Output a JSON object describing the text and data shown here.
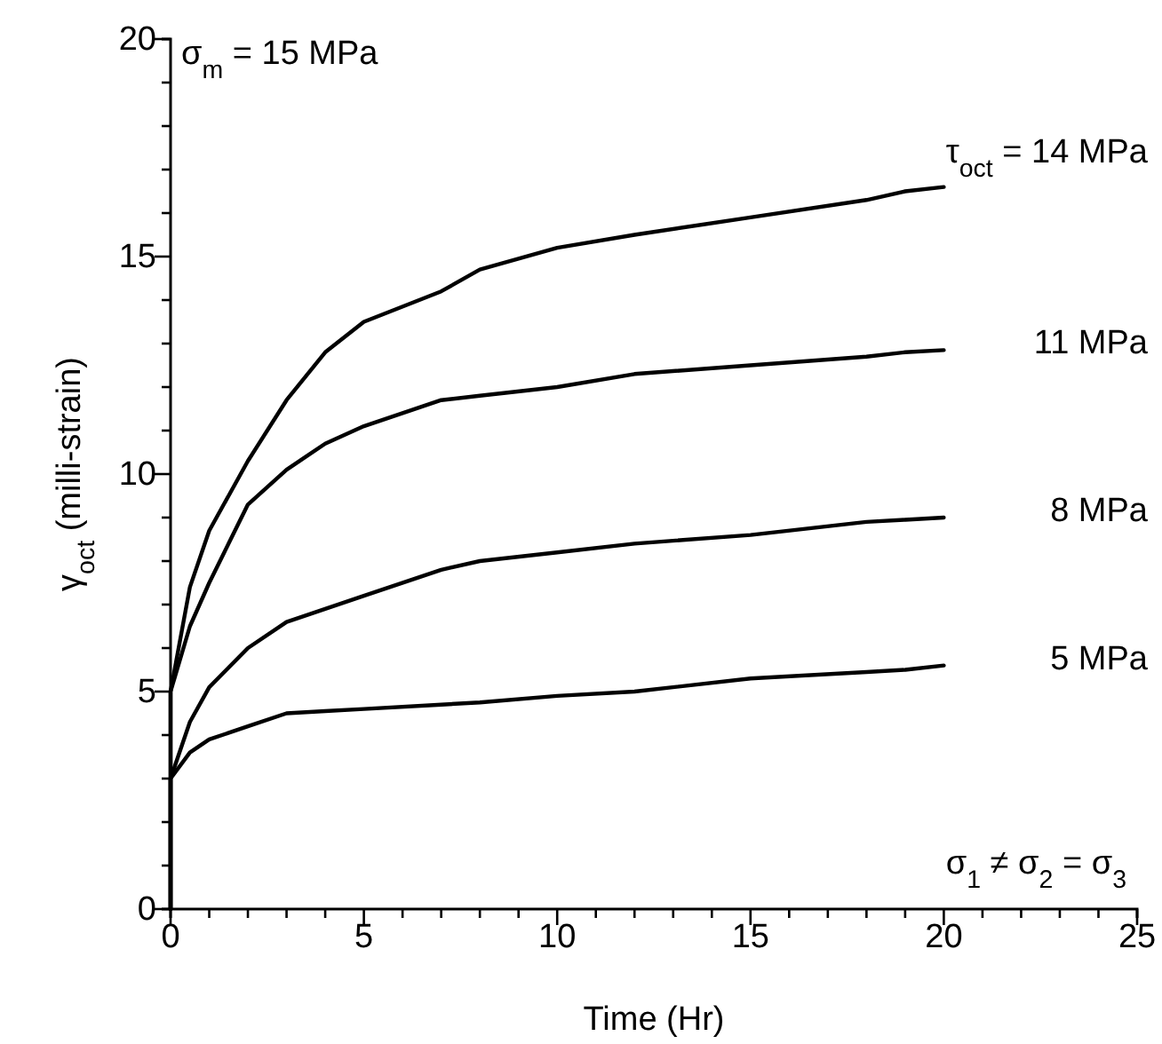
{
  "chart_data": {
    "type": "line",
    "xlabel": "Time (Hr)",
    "ylabel": "γ$_{oct}$  (milli-strain)",
    "xlim": [
      0,
      25
    ],
    "ylim": [
      0,
      20
    ],
    "xticks": [
      0,
      {
        "value": 1,
        "label": null
      },
      {
        "value": 2,
        "label": null
      },
      {
        "value": 3,
        "label": null
      },
      {
        "value": 4,
        "label": null
      },
      5,
      {
        "value": 6,
        "label": null
      },
      {
        "value": 7,
        "label": null
      },
      {
        "value": 8,
        "label": null
      },
      {
        "value": 9,
        "label": null
      },
      10,
      {
        "value": 11,
        "label": null
      },
      {
        "value": 12,
        "label": null
      },
      {
        "value": 13,
        "label": null
      },
      {
        "value": 14,
        "label": null
      },
      15,
      {
        "value": 16,
        "label": null
      },
      {
        "value": 17,
        "label": null
      },
      {
        "value": 18,
        "label": null
      },
      {
        "value": 19,
        "label": null
      },
      20,
      {
        "value": 21,
        "label": null
      },
      {
        "value": 22,
        "label": null
      },
      {
        "value": 23,
        "label": null
      },
      {
        "value": 24,
        "label": null
      },
      25
    ],
    "yticks": [
      0,
      {
        "value": 1,
        "label": null
      },
      {
        "value": 2,
        "label": null
      },
      {
        "value": 3,
        "label": null
      },
      {
        "value": 4,
        "label": null
      },
      5,
      {
        "value": 6,
        "label": null
      },
      {
        "value": 7,
        "label": null
      },
      {
        "value": 8,
        "label": null
      },
      {
        "value": 9,
        "label": null
      },
      10,
      {
        "value": 11,
        "label": null
      },
      {
        "value": 12,
        "label": null
      },
      {
        "value": 13,
        "label": null
      },
      {
        "value": 14,
        "label": null
      },
      15,
      {
        "value": 16,
        "label": null
      },
      {
        "value": 17,
        "label": null
      },
      {
        "value": 18,
        "label": null
      },
      {
        "value": 19,
        "label": null
      },
      20
    ],
    "grid": false,
    "legend": false,
    "marker": "none",
    "line_style": "solid",
    "x": [
      0,
      0,
      0.5,
      1,
      2,
      3,
      4,
      5,
      7,
      8,
      10,
      12,
      15,
      18,
      19,
      20
    ],
    "series": [
      {
        "name": "τ$_{oct}$ = 14 MPa",
        "color": "#000000",
        "values": [
          0,
          5,
          7.4,
          8.7,
          10.3,
          11.7,
          12.8,
          13.5,
          14.2,
          14.7,
          15.2,
          15.5,
          15.9,
          16.3,
          16.5,
          16.6
        ]
      },
      {
        "name": "11 MPa",
        "color": "#000000",
        "values": [
          0,
          5,
          6.5,
          7.5,
          9.3,
          10.1,
          10.7,
          11.1,
          11.7,
          11.8,
          12.0,
          12.3,
          12.5,
          12.7,
          12.8,
          12.85
        ]
      },
      {
        "name": "8 MPa",
        "color": "#000000",
        "values": [
          0,
          3,
          4.3,
          5.1,
          6.0,
          6.6,
          6.9,
          7.2,
          7.8,
          8.0,
          8.2,
          8.4,
          8.6,
          8.9,
          8.95,
          9.0
        ]
      },
      {
        "name": "5 MPa",
        "color": "#000000",
        "values": [
          0,
          3,
          3.6,
          3.9,
          4.2,
          4.5,
          4.55,
          4.6,
          4.7,
          4.75,
          4.9,
          5.0,
          5.3,
          5.45,
          5.5,
          5.6
        ]
      }
    ],
    "annotations": [
      "σ$_{m}$ = 15 MPa",
      "σ$_{1}$ ≠ σ$_{2}$ = σ$_{3}$"
    ]
  }
}
